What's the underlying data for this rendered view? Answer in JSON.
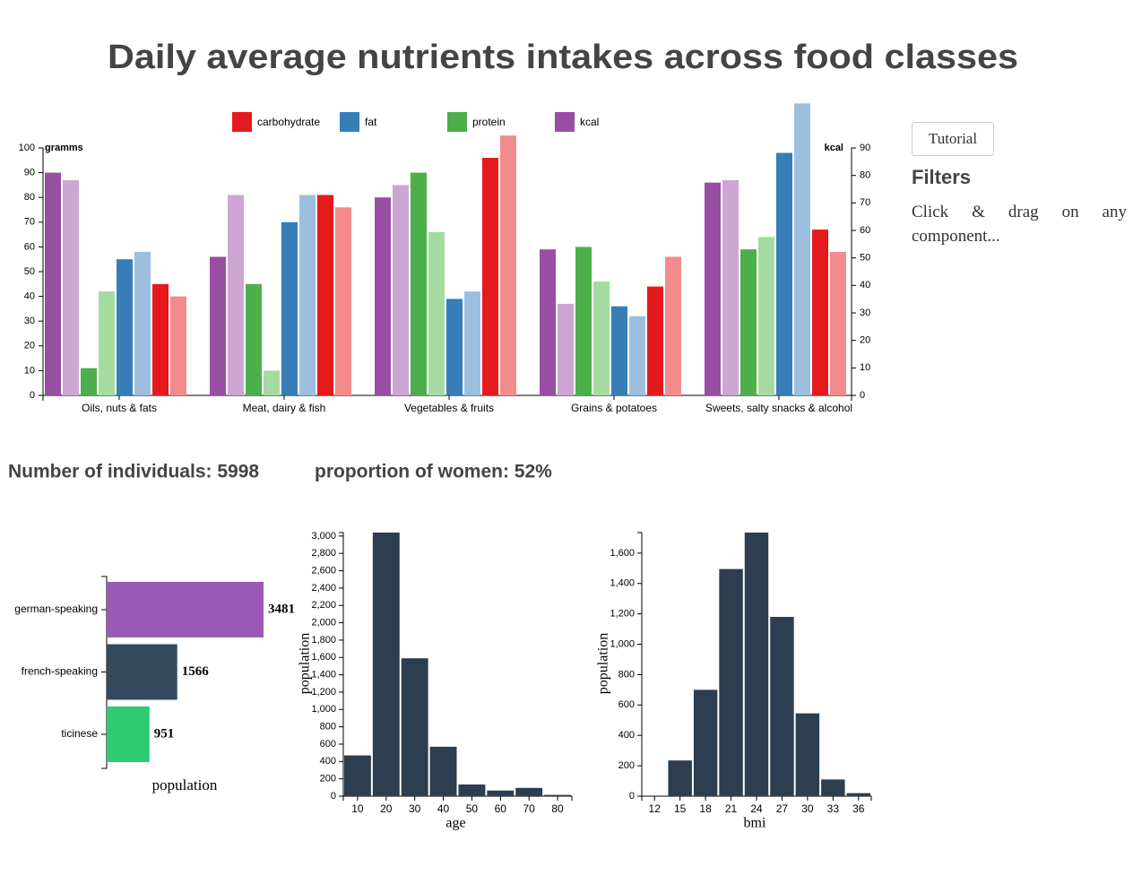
{
  "title": "Daily average nutrients intakes across food classes",
  "panel": {
    "button": "Tutorial",
    "heading": "Filters",
    "text": "Click & drag on any component..."
  },
  "stats": [
    "Number of individuals: 5998",
    "proportion of women: 52%"
  ],
  "chart_data": [
    {
      "type": "grouped_bar",
      "categories": [
        "Oils, nuts & fats",
        "Meat, dairy & fish",
        "Vegetables & fruits",
        "Grains & potatoes",
        "Sweets, salty snacks & alcohol"
      ],
      "ylabel": "gramms",
      "y2label": "kcal",
      "ylim": [
        0,
        100
      ],
      "yticks": [
        0,
        10,
        20,
        30,
        40,
        50,
        60,
        70,
        80,
        90,
        100
      ],
      "y2lim": [
        0,
        90
      ],
      "y2ticks": [
        0,
        10,
        20,
        30,
        40,
        50,
        60,
        70,
        80,
        90
      ],
      "series": [
        {
          "name": "carbohydrate",
          "color": "#e41a1c",
          "light_color": "#f28b8b",
          "values": [
            45,
            81,
            96,
            44,
            67
          ],
          "light_values": [
            40,
            76,
            105,
            56,
            58
          ]
        },
        {
          "name": "fat",
          "color": "#377eb8",
          "light_color": "#9dbfdf",
          "values": [
            55,
            70,
            39,
            36,
            98
          ],
          "light_values": [
            58,
            81,
            42,
            32,
            118
          ]
        },
        {
          "name": "protein",
          "color": "#4daf4a",
          "light_color": "#a5dba0",
          "values": [
            11,
            45,
            90,
            60,
            59
          ],
          "light_values": [
            42,
            10,
            66,
            46,
            64
          ]
        },
        {
          "name": "kcal",
          "color": "#984ea3",
          "light_color": "#cda6d3",
          "values": [
            90,
            56,
            80,
            59,
            86
          ],
          "light_values": [
            87,
            81,
            85,
            37,
            87
          ]
        }
      ]
    },
    {
      "type": "hbar",
      "categories": [
        "german-speaking",
        "french-speaking",
        "ticinese"
      ],
      "values": [
        3481,
        1566,
        951
      ],
      "colors": [
        "#9b59b6",
        "#34495e",
        "#2ecc71"
      ],
      "xlim": [
        0,
        3481
      ],
      "xlabel": "population"
    },
    {
      "type": "histogram",
      "bins": [
        5,
        15,
        25,
        35,
        45,
        55,
        65,
        75,
        85
      ],
      "counts": [
        470,
        3040,
        1590,
        570,
        135,
        65,
        95,
        15
      ],
      "color": "#2c3e50",
      "xlim": [
        5,
        85
      ],
      "xticks": [
        10,
        20,
        30,
        40,
        50,
        60,
        70,
        80
      ],
      "ylim": [
        0,
        3040
      ],
      "yticks": [
        0,
        200,
        400,
        600,
        800,
        {
          "value": 1000,
          "label": "1,000"
        },
        {
          "value": 1200,
          "label": "1,200"
        },
        {
          "value": 1400,
          "label": "1,400"
        },
        {
          "value": 1600,
          "label": "1,600"
        },
        {
          "value": 1800,
          "label": "1,800"
        },
        {
          "value": 2000,
          "label": "2,000"
        },
        {
          "value": 2200,
          "label": "2,200"
        },
        {
          "value": 2400,
          "label": "2,400"
        },
        {
          "value": 2600,
          "label": "2,600"
        },
        {
          "value": 2800,
          "label": "2,800"
        },
        {
          "value": 3000,
          "label": "3,000"
        }
      ],
      "xlabel": "age",
      "ylabel": "population"
    },
    {
      "type": "histogram",
      "bins": [
        10.5,
        13.5,
        16.5,
        19.5,
        22.5,
        25.5,
        28.5,
        31.5,
        34.5,
        37.5
      ],
      "counts": [
        0,
        235,
        700,
        1495,
        1735,
        1180,
        545,
        110,
        20
      ],
      "color": "#2c3e50",
      "xlim": [
        10.5,
        37.5
      ],
      "xticks": [
        12,
        15,
        18,
        21,
        24,
        27,
        30,
        33,
        36
      ],
      "ylim": [
        0,
        1735
      ],
      "yticks": [
        0,
        200,
        400,
        600,
        800,
        {
          "value": 1000,
          "label": "1,000"
        },
        {
          "value": 1200,
          "label": "1,200"
        },
        {
          "value": 1400,
          "label": "1,400"
        },
        {
          "value": 1600,
          "label": "1,600"
        }
      ],
      "xlabel": "bmi",
      "ylabel": "population"
    }
  ]
}
